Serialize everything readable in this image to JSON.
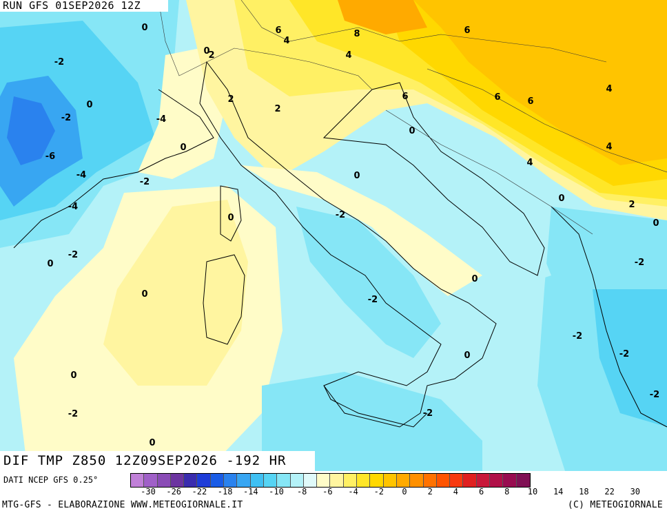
{
  "header": {
    "run_title": "RUN GFS 01SEP2026 12Z"
  },
  "plot": {
    "title": "DIF TMP Z850 12Z09SEP2026 -192 HR"
  },
  "footer": {
    "source": "DATI NCEP GFS 0.25°",
    "credit": "MTG-GFS - ELABORAZIONE WWW.METEOGIORNALE.IT",
    "copyright": "(C) METEOGIORNALE"
  },
  "legend": {
    "colors": [
      "#c080d8",
      "#a060c8",
      "#8a4cb6",
      "#6c34a0",
      "#3a2cae",
      "#1e3cd8",
      "#1a5ce6",
      "#2a82ee",
      "#38a6f2",
      "#40c0f2",
      "#56d4f4",
      "#86e6f6",
      "#b4f2f8",
      "#e0fafa",
      "#fffcc8",
      "#fff5a0",
      "#fff064",
      "#ffe628",
      "#ffd800",
      "#ffc400",
      "#ffaa00",
      "#ff9000",
      "#ff7200",
      "#ff5400",
      "#f83a10",
      "#e02020",
      "#c8183a",
      "#b01048",
      "#980c50",
      "#801054"
    ],
    "ticks": [
      "-30",
      "-26",
      "-22",
      "-18",
      "-14",
      "-10",
      "-8",
      "-6",
      "-4",
      "-2",
      "0",
      "2",
      "4",
      "6",
      "8",
      "10",
      "14",
      "18",
      "22",
      "30"
    ]
  },
  "contour_labels": [
    {
      "text": "0"
    },
    {
      "text": "6"
    },
    {
      "text": "4"
    },
    {
      "text": "8"
    },
    {
      "text": "6"
    },
    {
      "text": "-2"
    },
    {
      "text": "0"
    },
    {
      "text": "2"
    },
    {
      "text": "4"
    },
    {
      "text": "2"
    },
    {
      "text": "6"
    },
    {
      "text": "0"
    },
    {
      "text": "-2"
    },
    {
      "text": "-4"
    },
    {
      "text": "2"
    },
    {
      "text": "6"
    },
    {
      "text": "6"
    },
    {
      "text": "4"
    },
    {
      "text": "0"
    },
    {
      "text": "-6"
    },
    {
      "text": "0"
    },
    {
      "text": "4"
    },
    {
      "text": "-4"
    },
    {
      "text": "-2"
    },
    {
      "text": "0"
    },
    {
      "text": "4"
    },
    {
      "text": "-4"
    },
    {
      "text": "0"
    },
    {
      "text": "2"
    },
    {
      "text": "0"
    },
    {
      "text": "-2"
    },
    {
      "text": "0"
    },
    {
      "text": "-2"
    },
    {
      "text": "0"
    },
    {
      "text": "-2"
    },
    {
      "text": "0"
    },
    {
      "text": "-2"
    },
    {
      "text": "-2"
    },
    {
      "text": "0"
    },
    {
      "text": "-2"
    },
    {
      "text": "0"
    },
    {
      "text": "-2"
    },
    {
      "text": "-2"
    },
    {
      "text": "0"
    },
    {
      "text": "-2"
    }
  ]
}
